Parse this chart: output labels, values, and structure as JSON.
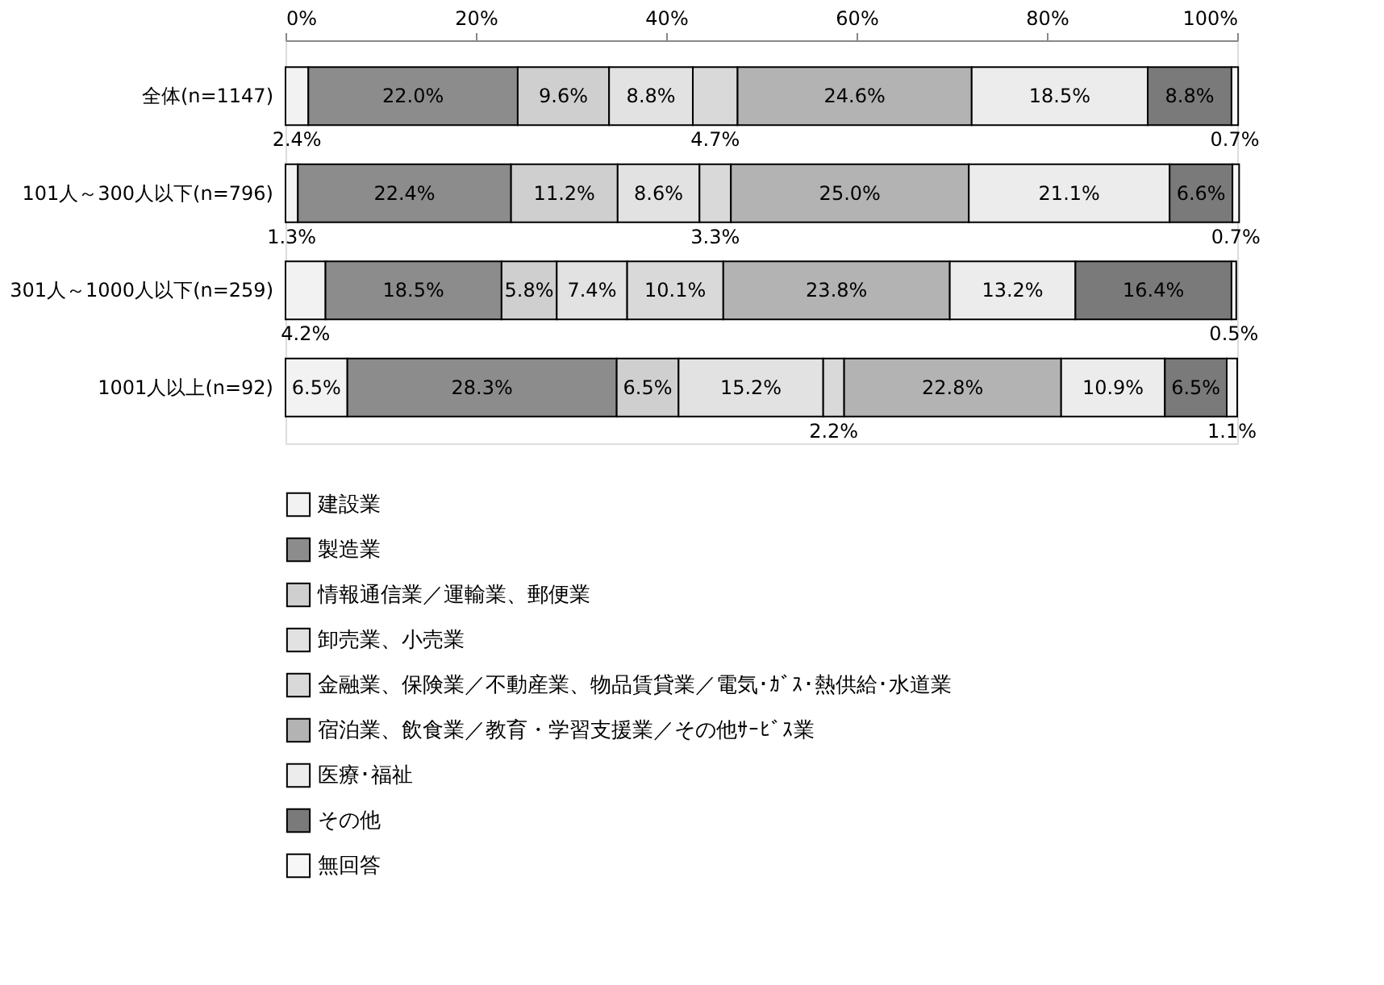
{
  "chart_data": {
    "type": "bar",
    "orientation": "horizontal",
    "stacked": true,
    "categories": [
      "全体(n=1147)",
      "101人～300人以下(n=796)",
      "301人～1000人以下(n=259)",
      "1001人以上(n=92)"
    ],
    "series": [
      {
        "name": "建設業",
        "color": "#f2f2f2",
        "values": [
          2.4,
          1.3,
          4.2,
          6.5
        ],
        "value_labels": [
          "2.4%",
          "1.3%",
          "4.2%",
          "6.5%"
        ]
      },
      {
        "name": "製造業",
        "color": "#8c8c8c",
        "values": [
          22.0,
          22.4,
          18.5,
          28.3
        ],
        "value_labels": [
          "22.0%",
          "22.4%",
          "18.5%",
          "28.3%"
        ]
      },
      {
        "name": "情報通信業／運輸業、郵便業",
        "color": "#cfcfcf",
        "values": [
          9.6,
          11.2,
          5.8,
          6.5
        ],
        "value_labels": [
          "9.6%",
          "11.2%",
          "5.8%",
          "6.5%"
        ]
      },
      {
        "name": "卸売業、小売業",
        "color": "#e2e2e2",
        "values": [
          8.8,
          8.6,
          7.4,
          15.2
        ],
        "value_labels": [
          "8.8%",
          "8.6%",
          "7.4%",
          "15.2%"
        ]
      },
      {
        "name": "金融業、保険業／不動産業、物品賃貸業／電気･ｶﾞｽ･熱供給･水道業",
        "color": "#d9d9d9",
        "values": [
          4.7,
          3.3,
          10.1,
          2.2
        ],
        "value_labels": [
          "4.7%",
          "3.3%",
          "10.1%",
          "2.2%"
        ]
      },
      {
        "name": "宿泊業、飲食業／教育・学習支援業／その他ｻｰﾋﾞｽ業",
        "color": "#b3b3b3",
        "values": [
          24.6,
          25.0,
          23.8,
          22.8
        ],
        "value_labels": [
          "24.6%",
          "25.0%",
          "23.8%",
          "22.8%"
        ]
      },
      {
        "name": "医療･福祉",
        "color": "#ececec",
        "values": [
          18.5,
          21.1,
          13.2,
          10.9
        ],
        "value_labels": [
          "18.5%",
          "21.1%",
          "13.2%",
          "10.9%"
        ]
      },
      {
        "name": "その他",
        "color": "#7a7a7a",
        "values": [
          8.8,
          6.6,
          16.4,
          6.5
        ],
        "value_labels": [
          "8.8%",
          "6.6%",
          "16.4%",
          "6.5%"
        ]
      },
      {
        "name": "無回答",
        "color": "#f7f7f7",
        "values": [
          0.7,
          0.7,
          0.5,
          1.1
        ],
        "value_labels": [
          "0.7%",
          "0.7%",
          "0.5%",
          "1.1%"
        ]
      }
    ],
    "xlim": [
      0,
      100
    ],
    "xticks": [
      {
        "value": 0,
        "label": "0%"
      },
      {
        "value": 20,
        "label": "20%"
      },
      {
        "value": 40,
        "label": "40%"
      },
      {
        "value": 60,
        "label": "60%"
      },
      {
        "value": 80,
        "label": "80%"
      },
      {
        "value": 100,
        "label": "100%"
      }
    ],
    "grid": false,
    "legend": "bottom left"
  }
}
